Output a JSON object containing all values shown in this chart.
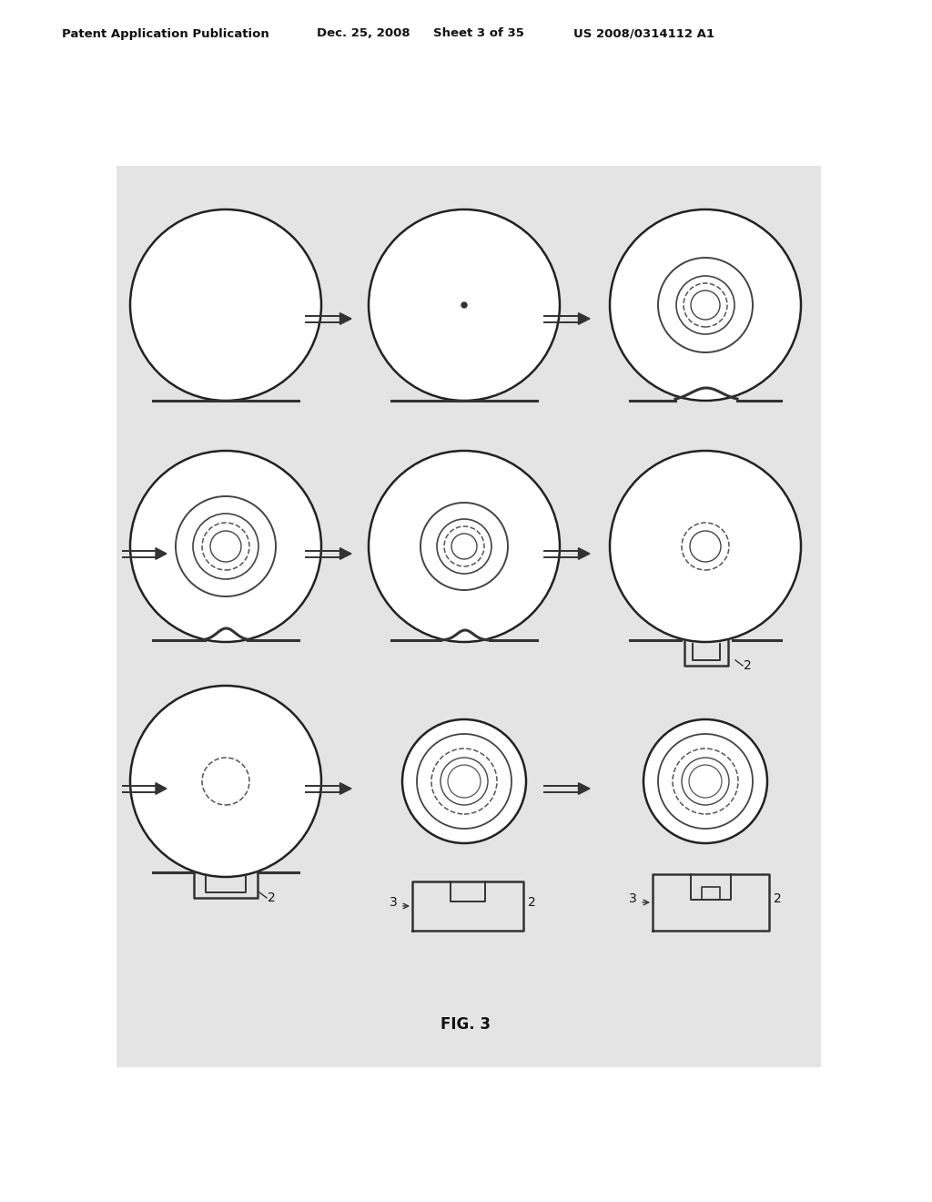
{
  "bg_color": "#ffffff",
  "header_text": "Patent Application Publication",
  "header_date": "Dec. 25, 2008",
  "header_sheet": "Sheet 3 of 35",
  "header_patent": "US 2008/0314112 A1",
  "fig_label": "FIG. 3",
  "grid_bg": "#e4e4e4",
  "label_2": "2",
  "label_3": "3"
}
